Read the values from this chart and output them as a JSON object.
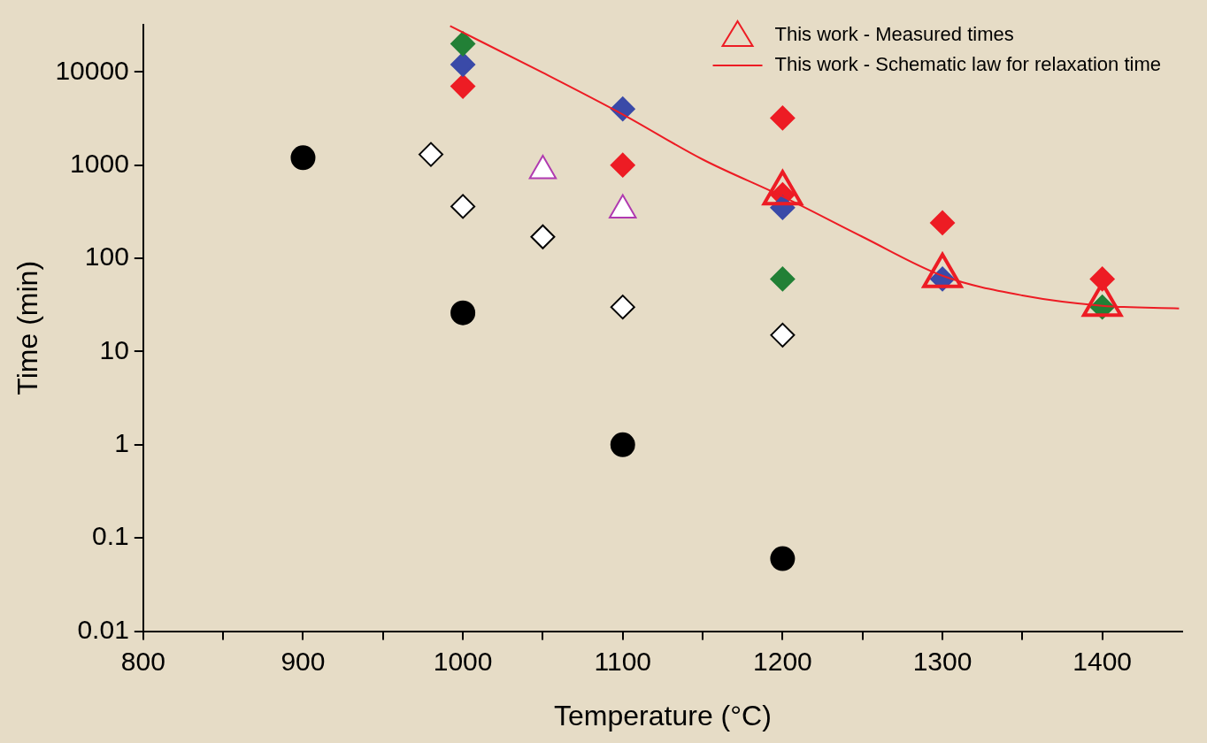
{
  "chart_data": {
    "type": "scatter",
    "xlabel": "Temperature (°C)",
    "ylabel": "Time (min)",
    "xlim": [
      800,
      1450
    ],
    "xticks": [
      800,
      {
        "value": 850,
        "label": null
      },
      900,
      {
        "value": 950,
        "label": null
      },
      1000,
      {
        "value": 1050,
        "label": null
      },
      1100,
      {
        "value": 1150,
        "label": null
      },
      1200,
      {
        "value": 1250,
        "label": null
      },
      1300,
      {
        "value": 1350,
        "label": null
      },
      1400
    ],
    "ylim": [
      0.01,
      32000
    ],
    "yticks": [
      0.01,
      0.1,
      1,
      10,
      100,
      1000,
      10000
    ],
    "log": "y",
    "legend": "top right",
    "series": [
      {
        "color": "#000000",
        "marker": "circle",
        "x": [
          900,
          1000,
          1100,
          1200
        ],
        "values": [
          1200,
          26,
          1,
          0.06
        ]
      },
      {
        "color": "#000000",
        "marker": "diamond",
        "x": [
          980,
          1000,
          1050,
          1100,
          1200
        ],
        "values": [
          1300,
          360,
          170,
          30,
          15
        ]
      },
      {
        "color": "#b03ab0",
        "marker": "triangle",
        "x": [
          1050,
          1100
        ],
        "values": [
          870,
          330
        ]
      },
      {
        "color": "#228036",
        "marker": "diamond",
        "x": [
          1000,
          1200,
          1400
        ],
        "values": [
          20000,
          60,
          30
        ]
      },
      {
        "color": "#3a4aa8",
        "marker": "diamond",
        "x": [
          1000,
          1100,
          1200,
          1300
        ],
        "values": [
          12000,
          4000,
          350,
          60
        ]
      },
      {
        "color": "#ed1c24",
        "marker": "diamond",
        "x": [
          1000,
          1100,
          1200,
          1200,
          1300,
          1400
        ],
        "values": [
          7000,
          1000,
          3200,
          480,
          240,
          60
        ]
      },
      {
        "name": "This work - Measured times",
        "color": "#ed1c24",
        "marker": "triangle",
        "x": [
          1200,
          1300,
          1400
        ],
        "values": [
          500,
          65,
          32
        ]
      },
      {
        "name": "This work - Schematic law for relaxation time",
        "type": "line",
        "color": "#ed1c24",
        "marker": "none",
        "x": [
          992,
          1050,
          1100,
          1150,
          1200,
          1250,
          1300,
          1350,
          1400,
          1448
        ],
        "values": [
          31000,
          9800,
          3500,
          1150,
          460,
          170,
          65,
          40,
          31,
          29
        ]
      }
    ]
  }
}
